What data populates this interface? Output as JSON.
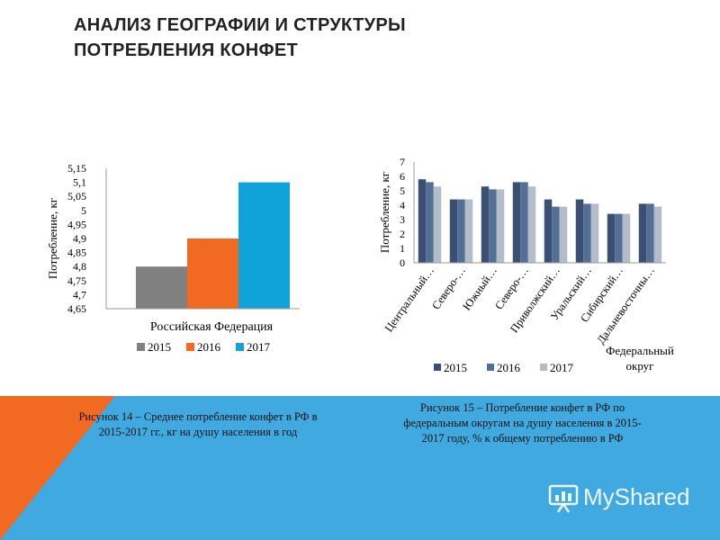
{
  "slide": {
    "title_line1": "АНАЛИЗ ГЕОГРАФИИ И СТРУКТУРЫ",
    "title_line2": "ПОТРЕБЛЕНИЯ КОНФЕТ"
  },
  "colors": {
    "band_blue": "#3fa9e0",
    "band_orange": "#f26a21",
    "s2015_a": "#808080",
    "s2016_a": "#f26a21",
    "s2017_a": "#0fa3d9",
    "s2015_b": "#3a4f72",
    "s2016_b": "#536f94",
    "s2017_b": "#b3bcc9"
  },
  "chart_data": [
    {
      "type": "bar",
      "categories": [
        "Российская Федерация"
      ],
      "series": [
        {
          "name": "2015",
          "values": [
            4.8
          ]
        },
        {
          "name": "2016",
          "values": [
            4.9
          ]
        },
        {
          "name": "2017",
          "values": [
            5.1
          ]
        }
      ],
      "ylabel": "Потребление, кг",
      "xlabel": "",
      "ylim": [
        4.65,
        5.15
      ],
      "yticks": [
        "4,65",
        "4,7",
        "4,75",
        "4,8",
        "4,85",
        "4,9",
        "4,95",
        "5",
        "5,05",
        "5,1",
        "5,15"
      ],
      "legend": "bottom",
      "grid": false
    },
    {
      "type": "bar",
      "categories": [
        "Центральный…",
        "Северо-…",
        "Южный…",
        "Северо-…",
        "Приволжский…",
        "Уральский…",
        "Сибирский…",
        "Дальневосточны…"
      ],
      "series": [
        {
          "name": "2015",
          "values": [
            5.8,
            4.4,
            5.3,
            5.6,
            4.4,
            4.4,
            3.4,
            4.1
          ]
        },
        {
          "name": "2016",
          "values": [
            5.6,
            4.4,
            5.1,
            5.6,
            3.9,
            4.1,
            3.4,
            4.1
          ]
        },
        {
          "name": "2017",
          "values": [
            5.3,
            4.4,
            5.1,
            5.3,
            3.9,
            4.1,
            3.4,
            3.9
          ]
        }
      ],
      "ylabel": "Потребление, кг",
      "xlabel": "Федеральный округ",
      "ylim": [
        0,
        7
      ],
      "yticks": [
        "0",
        "1",
        "2",
        "3",
        "4",
        "5",
        "6",
        "7"
      ],
      "legend": "bottom",
      "grid": false
    }
  ],
  "captions": {
    "fig14": "Рисунок 14 – Среднее потребление конфет в РФ в 2015-2017 гг., кг на душу населения в год",
    "fig15": "Рисунок 15 – Потребление конфет в РФ по федеральным округам на душу населения в 2015-2017 году, % к общему потреблению в РФ"
  },
  "watermark": {
    "text": "MyShared",
    "icon": "presentation-board-icon"
  }
}
